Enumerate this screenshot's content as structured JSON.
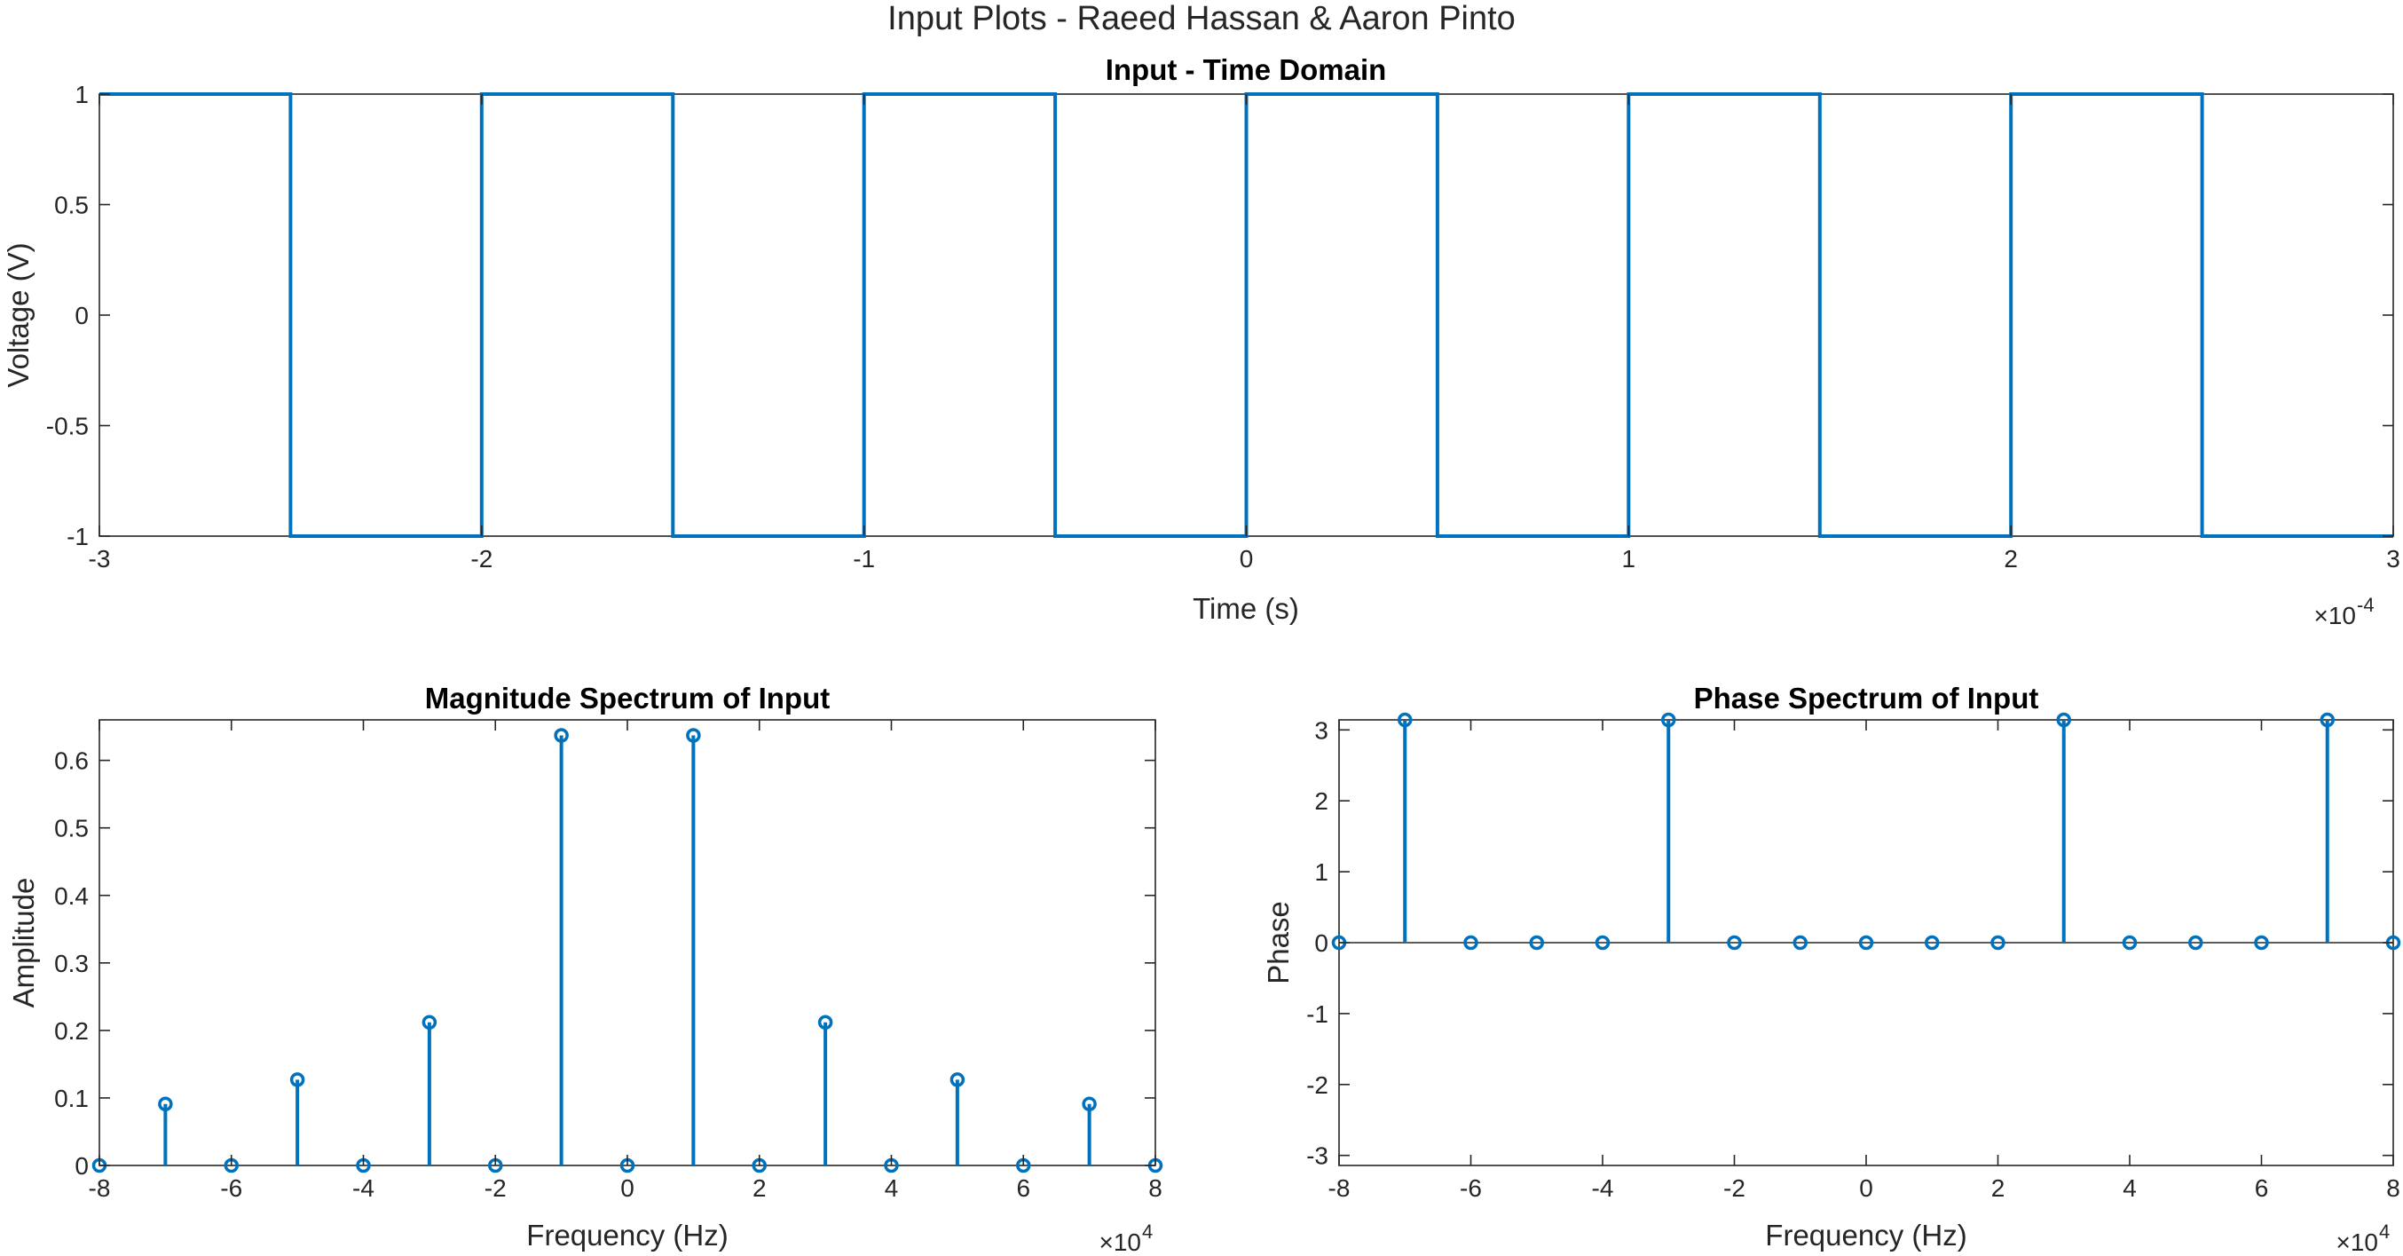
{
  "figure_title": "Input Plots - Raeed Hassan & Aaron Pinto",
  "line_color": "#0072BD",
  "chart_data": [
    {
      "type": "line",
      "title": "Input - Time Domain",
      "xlabel": "Time (s)",
      "ylabel": "Voltage (V)",
      "xlim": [
        -3,
        3
      ],
      "ylim": [
        -1,
        1
      ],
      "x_exponent": "-4",
      "xticks": [
        "-3",
        "-2",
        "-1",
        "0",
        "1",
        "2",
        "3"
      ],
      "yticks": [
        "-1",
        "-0.5",
        "0",
        "0.5",
        "1"
      ],
      "x": [
        -3,
        -2.5,
        -2.5,
        -2,
        -2,
        -1.5,
        -1.5,
        -1,
        -1,
        -0.5,
        -0.5,
        0,
        0,
        0.5,
        0.5,
        1,
        1,
        1.5,
        1.5,
        2,
        2,
        2.5,
        2.5,
        3
      ],
      "y": [
        1,
        1,
        -1,
        -1,
        1,
        1,
        -1,
        -1,
        1,
        1,
        -1,
        -1,
        1,
        1,
        -1,
        -1,
        1,
        1,
        -1,
        -1,
        1,
        1,
        -1,
        -1
      ],
      "grid": false
    },
    {
      "type": "stem",
      "title": "Magnitude Spectrum of Input",
      "xlabel": "Frequency (Hz)",
      "ylabel": "Amplitude",
      "xlim": [
        -8,
        8
      ],
      "ylim": [
        0,
        0.66
      ],
      "x_exponent": "4",
      "xticks": [
        "-8",
        "-6",
        "-4",
        "-2",
        "0",
        "2",
        "4",
        "6",
        "8"
      ],
      "yticks": [
        "0",
        "0.1",
        "0.2",
        "0.3",
        "0.4",
        "0.5",
        "0.6"
      ],
      "x": [
        -8,
        -7,
        -6,
        -5,
        -4,
        -3,
        -2,
        -1,
        0,
        1,
        2,
        3,
        4,
        5,
        6,
        7,
        8
      ],
      "y": [
        0,
        0.091,
        0,
        0.127,
        0,
        0.212,
        0,
        0.637,
        0,
        0.637,
        0,
        0.212,
        0,
        0.127,
        0,
        0.091,
        0
      ],
      "grid": false
    },
    {
      "type": "stem",
      "title": "Phase Spectrum of Input",
      "xlabel": "Frequency (Hz)",
      "ylabel": "Phase",
      "xlim": [
        -8,
        8
      ],
      "ylim": [
        -3.14159,
        3.14159
      ],
      "x_exponent": "4",
      "xticks": [
        "-8",
        "-6",
        "-4",
        "-2",
        "0",
        "2",
        "4",
        "6",
        "8"
      ],
      "yticks": [
        "-3",
        "-2",
        "-1",
        "0",
        "1",
        "2",
        "3"
      ],
      "x": [
        -8,
        -7,
        -6,
        -5,
        -4,
        -3,
        -2,
        -1,
        0,
        1,
        2,
        3,
        4,
        5,
        6,
        7,
        8
      ],
      "y": [
        0,
        3.14159,
        0,
        0,
        0,
        3.14159,
        0,
        0,
        0,
        0,
        0,
        3.14159,
        0,
        0,
        0,
        3.14159,
        0
      ],
      "grid": false
    }
  ]
}
